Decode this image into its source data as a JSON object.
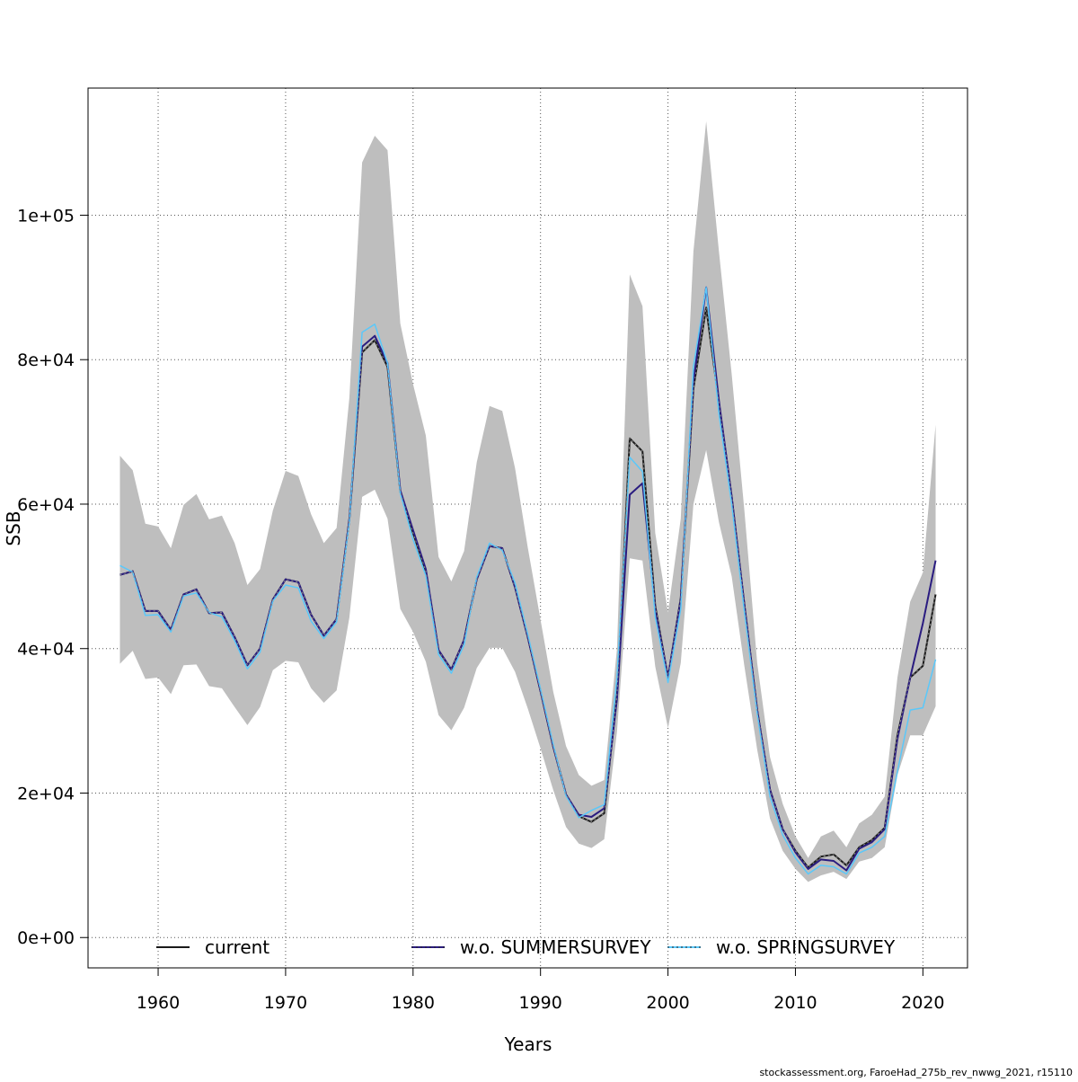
{
  "chart_data": {
    "type": "line",
    "xlabel": "Years",
    "ylabel": "SSB",
    "xlim": [
      1954.5,
      2023.5
    ],
    "ylim": [
      -4200,
      117600
    ],
    "x_ticks": [
      1960,
      1970,
      1980,
      1990,
      2000,
      2010,
      2020
    ],
    "x_tick_labels": [
      "1960",
      "1970",
      "1980",
      "1990",
      "2000",
      "2010",
      "2020"
    ],
    "y_ticks": [
      0,
      20000,
      40000,
      60000,
      80000,
      100000
    ],
    "y_tick_labels": [
      "0e+00",
      "2e+04",
      "4e+04",
      "6e+04",
      "8e+04",
      "1e+05"
    ],
    "grid": true,
    "legend_position": "bottom",
    "footer": "stockassessment.org, FaroeHad_275b_rev_nwwg_2021, r15110",
    "confidence_band": {
      "color": "#bebebe",
      "x": [
        1957,
        1958,
        1959,
        1960,
        1961,
        1962,
        1963,
        1964,
        1965,
        1966,
        1967,
        1968,
        1969,
        1970,
        1971,
        1972,
        1973,
        1974,
        1975,
        1976,
        1977,
        1978,
        1979,
        1980,
        1981,
        1982,
        1983,
        1984,
        1985,
        1986,
        1987,
        1988,
        1989,
        1990,
        1991,
        1992,
        1993,
        1994,
        1995,
        1996,
        1997,
        1998,
        1999,
        2000,
        2001,
        2002,
        2003,
        2004,
        2005,
        2006,
        2007,
        2008,
        2009,
        2010,
        2011,
        2012,
        2013,
        2014,
        2015,
        2016,
        2017,
        2018,
        2019,
        2020,
        2021
      ],
      "upper": [
        66700,
        64700,
        57300,
        56900,
        53900,
        59900,
        61400,
        57900,
        58400,
        54600,
        48800,
        51000,
        59100,
        64600,
        63900,
        58600,
        54600,
        56700,
        74700,
        107300,
        111000,
        109000,
        85000,
        76600,
        69500,
        52700,
        49300,
        53500,
        65800,
        73600,
        72900,
        65000,
        54000,
        44000,
        34000,
        26500,
        22500,
        21000,
        21800,
        40000,
        91800,
        87400,
        56000,
        45000,
        58000,
        95000,
        113000,
        95000,
        78000,
        59000,
        38000,
        25000,
        18500,
        14000,
        11000,
        14000,
        14800,
        12500,
        15800,
        17000,
        19500,
        36000,
        46500,
        50500,
        71000
      ],
      "lower": [
        37900,
        39700,
        35800,
        36000,
        33700,
        37700,
        37800,
        34800,
        34500,
        31900,
        29400,
        31900,
        37000,
        38300,
        38100,
        34500,
        32500,
        34200,
        44300,
        61000,
        62000,
        58000,
        45500,
        42300,
        38200,
        30800,
        28700,
        31800,
        37300,
        40100,
        40100,
        36800,
        31700,
        26200,
        20400,
        15300,
        13000,
        12400,
        13600,
        28500,
        52500,
        52200,
        37500,
        29000,
        38000,
        60000,
        67500,
        57500,
        50000,
        37500,
        26000,
        16500,
        12000,
        9500,
        7700,
        8600,
        9100,
        8100,
        10500,
        11000,
        12500,
        22500,
        28000,
        28000,
        32000
      ]
    },
    "series": [
      {
        "name": "current",
        "color": "#1a1a1a",
        "dash": "solid",
        "x": [
          1957,
          1958,
          1959,
          1960,
          1961,
          1962,
          1963,
          1964,
          1965,
          1966,
          1967,
          1968,
          1969,
          1970,
          1971,
          1972,
          1973,
          1974,
          1975,
          1976,
          1977,
          1978,
          1979,
          1980,
          1981,
          1982,
          1983,
          1984,
          1985,
          1986,
          1987,
          1988,
          1989,
          1990,
          1991,
          1992,
          1993,
          1994,
          1995,
          1996,
          1997,
          1998,
          1999,
          2000,
          2001,
          2002,
          2003,
          2004,
          2005,
          2006,
          2007,
          2008,
          2009,
          2010,
          2011,
          2012,
          2013,
          2014,
          2015,
          2016,
          2017,
          2018,
          2019,
          2020,
          2021
        ],
        "values": [
          50200,
          50700,
          45200,
          45200,
          42600,
          47500,
          48200,
          44900,
          45000,
          41600,
          37700,
          40000,
          46800,
          49600,
          49200,
          44700,
          41800,
          44100,
          57900,
          81000,
          82700,
          79000,
          61700,
          56000,
          50700,
          39700,
          37100,
          41200,
          49600,
          54200,
          53900,
          48500,
          41600,
          34100,
          26400,
          19800,
          16800,
          16000,
          17200,
          33500,
          69100,
          67300,
          45900,
          36000,
          47000,
          76000,
          87200,
          74000,
          61000,
          46000,
          31500,
          20500,
          15000,
          12000,
          9700,
          11200,
          11500,
          10000,
          12500,
          13500,
          15200,
          28000,
          36000,
          37600,
          47500
        ]
      },
      {
        "name": "w.o. SUMMERSURVEY",
        "color": "#2a1c80",
        "dash": "solid",
        "x": [
          1957,
          1958,
          1959,
          1960,
          1961,
          1962,
          1963,
          1964,
          1965,
          1966,
          1967,
          1968,
          1969,
          1970,
          1971,
          1972,
          1973,
          1974,
          1975,
          1976,
          1977,
          1978,
          1979,
          1980,
          1981,
          1982,
          1983,
          1984,
          1985,
          1986,
          1987,
          1988,
          1989,
          1990,
          1991,
          1992,
          1993,
          1994,
          1995,
          1996,
          1997,
          1998,
          1999,
          2000,
          2001,
          2002,
          2003,
          2004,
          2005,
          2006,
          2007,
          2008,
          2009,
          2010,
          2011,
          2012,
          2013,
          2014,
          2015,
          2016,
          2017,
          2018,
          2019,
          2020,
          2021
        ],
        "values": [
          50200,
          50700,
          45200,
          45200,
          42600,
          47500,
          48200,
          44900,
          45000,
          41600,
          37700,
          40000,
          46800,
          49600,
          49200,
          44700,
          41800,
          44100,
          57900,
          81800,
          83300,
          79500,
          61900,
          56400,
          51000,
          39800,
          37100,
          41200,
          49600,
          54200,
          53900,
          48500,
          41600,
          34100,
          26400,
          19800,
          17000,
          16700,
          17900,
          33000,
          61300,
          62900,
          45500,
          36000,
          46800,
          77000,
          90000,
          74300,
          61000,
          46000,
          31500,
          20500,
          15000,
          11800,
          9500,
          10800,
          10600,
          9300,
          12300,
          13200,
          15000,
          27500,
          36000,
          43500,
          52200
        ]
      },
      {
        "name": "w.o. SPRINGSURVEY",
        "color": "#5ac8fa",
        "dash": "dotted",
        "x": [
          1957,
          1958,
          1959,
          1960,
          1961,
          1962,
          1963,
          1964,
          1965,
          1966,
          1967,
          1968,
          1969,
          1970,
          1971,
          1972,
          1973,
          1974,
          1975,
          1976,
          1977,
          1978,
          1979,
          1980,
          1981,
          1982,
          1983,
          1984,
          1985,
          1986,
          1987,
          1988,
          1989,
          1990,
          1991,
          1992,
          1993,
          1994,
          1995,
          1996,
          1997,
          1998,
          1999,
          2000,
          2001,
          2002,
          2003,
          2004,
          2005,
          2006,
          2007,
          2008,
          2009,
          2010,
          2011,
          2012,
          2013,
          2014,
          2015,
          2016,
          2017,
          2018,
          2019,
          2020,
          2021
        ],
        "values": [
          51500,
          50600,
          44600,
          44700,
          42300,
          47300,
          47700,
          45000,
          44400,
          41100,
          37200,
          39500,
          46600,
          48800,
          48400,
          43800,
          41400,
          43700,
          57600,
          83800,
          84900,
          79500,
          61500,
          55100,
          50100,
          39200,
          36600,
          40500,
          49900,
          54600,
          53600,
          49100,
          42000,
          34400,
          26700,
          19600,
          16600,
          17600,
          18400,
          36000,
          66500,
          64500,
          44400,
          35300,
          45500,
          79000,
          90000,
          72500,
          60000,
          45000,
          31000,
          19500,
          14200,
          11000,
          8800,
          10000,
          9800,
          8800,
          11700,
          12500,
          14000,
          23000,
          31500,
          31800,
          38500
        ]
      }
    ]
  }
}
